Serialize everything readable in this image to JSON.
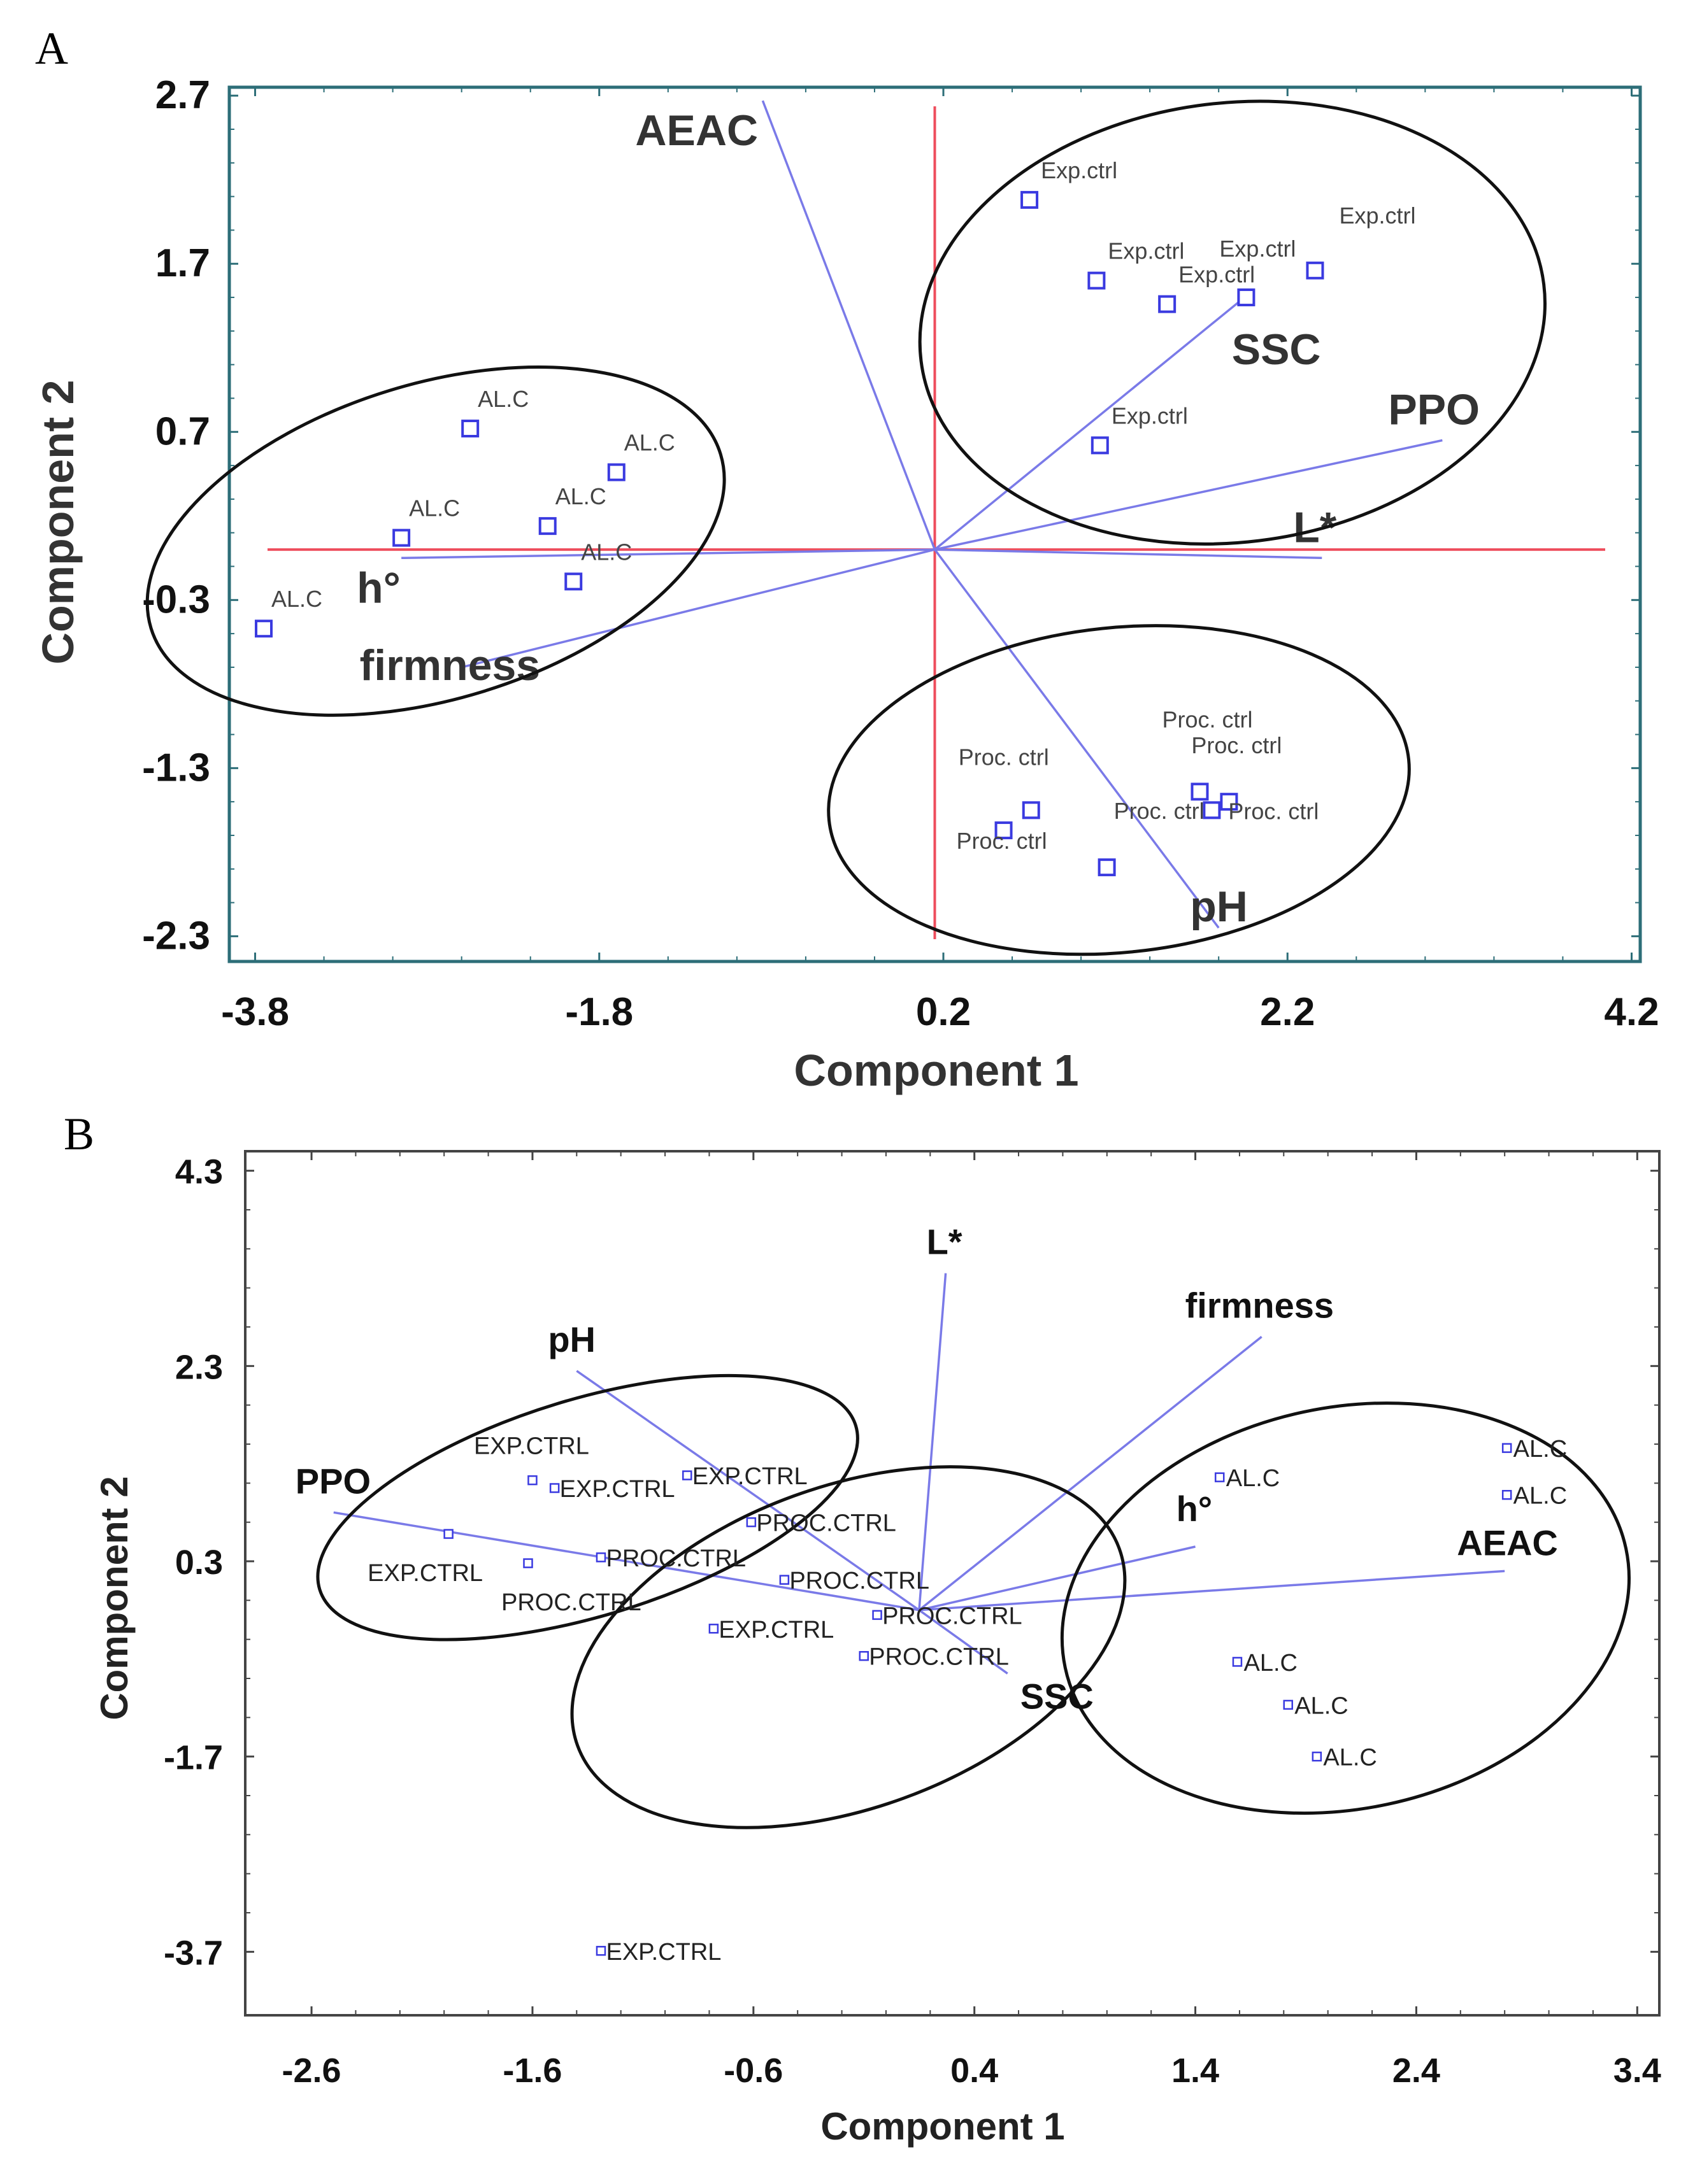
{
  "colors": {
    "point": "#3a3ae0",
    "loading_line": "#7a7ae8",
    "crosshair": "#ee4d5c",
    "frameA": "#2d6e78",
    "frameB": "#444444",
    "ellipse": "#111111"
  },
  "panels": {
    "A": {
      "letter": "A"
    },
    "B": {
      "letter": "B"
    }
  },
  "chart_data": [
    {
      "type": "scatter",
      "panel": "A",
      "xlabel": "Component 1",
      "ylabel": "Component 2",
      "xlim": [
        -3.95,
        4.25
      ],
      "ylim": [
        -2.45,
        2.75
      ],
      "xticks": [
        -3.8,
        -1.8,
        0.2,
        2.2,
        4.2
      ],
      "xtick_labels": [
        "-3.8",
        "-1.8",
        "0.2",
        "2.2",
        "4.2"
      ],
      "yticks": [
        2.7,
        1.7,
        0.7,
        -0.3,
        -1.3,
        -2.3
      ],
      "ytick_labels": [
        "2.7",
        "1.7",
        "0.7",
        "-0.3",
        "-1.3",
        "-2.3"
      ],
      "crosshair": {
        "x": 0.15,
        "y": 0.0
      },
      "points": [
        {
          "label": "AL.C",
          "x": -2.55,
          "y": 0.72
        },
        {
          "label": "AL.C",
          "x": -1.7,
          "y": 0.46
        },
        {
          "label": "AL.C",
          "x": -2.1,
          "y": 0.14
        },
        {
          "label": "AL.C",
          "x": -2.95,
          "y": 0.07
        },
        {
          "label": "AL.C",
          "x": -1.95,
          "y": -0.19
        },
        {
          "label": "AL.C",
          "x": -3.75,
          "y": -0.47
        },
        {
          "label": "Exp.ctrl",
          "x": 0.7,
          "y": 2.08
        },
        {
          "label": "Exp.ctrl",
          "x": 1.09,
          "y": 1.6
        },
        {
          "label": "Exp.ctrl",
          "x": 1.5,
          "y": 1.46
        },
        {
          "label": "Exp.ctrl",
          "x": 1.96,
          "y": 1.5
        },
        {
          "label": "Exp.ctrl",
          "x": 2.36,
          "y": 1.66
        },
        {
          "label": "Exp.ctrl",
          "x": 1.11,
          "y": 0.62
        },
        {
          "label": "Proc. ctrl",
          "x": 1.69,
          "y": -1.44
        },
        {
          "label": "Proc. ctrl",
          "x": 1.86,
          "y": -1.5
        },
        {
          "label": "Proc. ctrl",
          "x": 1.76,
          "y": -1.55
        },
        {
          "label": "Proc. ctrl",
          "x": 0.71,
          "y": -1.55
        },
        {
          "label": "Proc. ctrl",
          "x": 0.55,
          "y": -1.67
        },
        {
          "label": "Proc. ctrl",
          "x": 1.15,
          "y": -1.89
        }
      ],
      "loadings": [
        {
          "label": "AEAC",
          "x": -0.85,
          "y": 2.67
        },
        {
          "label": "SSC",
          "x": 1.95,
          "y": 1.5
        },
        {
          "label": "PPO",
          "x": 3.1,
          "y": 0.65
        },
        {
          "label": "L*",
          "x": 2.4,
          "y": -0.05
        },
        {
          "label": "h°",
          "x": -2.95,
          "y": -0.05
        },
        {
          "label": "firmness",
          "x": -2.6,
          "y": -0.7
        },
        {
          "label": "pH",
          "x": 1.8,
          "y": -2.25
        }
      ]
    },
    {
      "type": "scatter",
      "panel": "B",
      "xlabel": "Component 1",
      "ylabel": "Component 2",
      "xlim": [
        -2.9,
        3.5
      ],
      "ylim": [
        -4.35,
        4.5
      ],
      "xticks": [
        -2.6,
        -1.6,
        -0.6,
        0.4,
        1.4,
        2.4,
        3.4
      ],
      "xtick_labels": [
        "-2.6",
        "-1.6",
        "-0.6",
        "0.4",
        "1.4",
        "2.4",
        "3.4"
      ],
      "yticks": [
        4.3,
        2.3,
        0.3,
        -1.7,
        -3.7
      ],
      "ytick_labels": [
        "4.3",
        "2.3",
        "0.3",
        "-1.7",
        "-3.7"
      ],
      "points": [
        {
          "label": "EXP.CTRL",
          "x": -1.6,
          "y": 1.13
        },
        {
          "label": "EXP.CTRL",
          "x": -1.5,
          "y": 1.05
        },
        {
          "label": "EXP.CTRL",
          "x": -1.98,
          "y": 0.58
        },
        {
          "label": "EXP.CTRL",
          "x": -0.9,
          "y": 1.18
        },
        {
          "label": "EXP.CTRL",
          "x": -0.78,
          "y": -0.39
        },
        {
          "label": "EXP.CTRL",
          "x": -1.29,
          "y": -3.69
        },
        {
          "label": "PROC.CTRL",
          "x": -0.61,
          "y": 0.7
        },
        {
          "label": "PROC.CTRL",
          "x": -1.29,
          "y": 0.34
        },
        {
          "label": "PROC.CTRL",
          "x": -1.62,
          "y": 0.28
        },
        {
          "label": "PROC.CTRL",
          "x": -0.46,
          "y": 0.11
        },
        {
          "label": "PROC.CTRL",
          "x": -0.04,
          "y": -0.25
        },
        {
          "label": "PROC.CTRL",
          "x": -0.1,
          "y": -0.67
        },
        {
          "label": "AL.C",
          "x": 2.81,
          "y": 1.46
        },
        {
          "label": "AL.C",
          "x": 2.81,
          "y": 0.98
        },
        {
          "label": "AL.C",
          "x": 1.51,
          "y": 1.16
        },
        {
          "label": "AL.C",
          "x": 1.59,
          "y": -0.73
        },
        {
          "label": "AL.C",
          "x": 1.82,
          "y": -1.17
        },
        {
          "label": "AL.C",
          "x": 1.95,
          "y": -1.7
        }
      ],
      "loadings": [
        {
          "label": "L*",
          "x": 0.27,
          "y": 3.25
        },
        {
          "label": "firmness",
          "x": 1.7,
          "y": 2.6
        },
        {
          "label": "pH",
          "x": -1.4,
          "y": 2.25
        },
        {
          "label": "PPO",
          "x": -2.5,
          "y": 0.8
        },
        {
          "label": "h°",
          "x": 1.4,
          "y": 0.45
        },
        {
          "label": "AEAC",
          "x": 2.8,
          "y": 0.2
        },
        {
          "label": "SSC",
          "x": 0.55,
          "y": -0.85
        }
      ]
    }
  ]
}
